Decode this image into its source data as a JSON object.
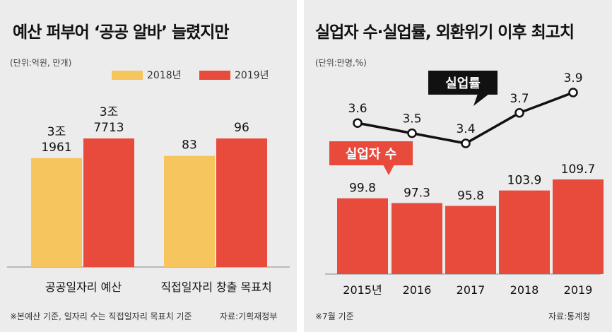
{
  "colors": {
    "series2018": "#f7c55e",
    "series2019": "#e84a3c",
    "line": "#111111",
    "panel_bg": "#ececec"
  },
  "left": {
    "title": "예산 퍼부어 ‘공공 알바’ 늘렸지만",
    "unit": "(단위:억원, 만개)",
    "legend": [
      "2018년",
      "2019년"
    ],
    "footnote": "※본예산 기준, 일자리 수는 직접일자리 목표치 기준",
    "source": "자료:기획재정부"
  },
  "right": {
    "title": "실업자 수·실업률, 외환위기 이후 최고치",
    "unit": "(단위:만명,%)",
    "footnote": "※7월 기준",
    "source": "자료:통계청"
  },
  "chart_data": [
    {
      "type": "bar",
      "categories": [
        "공공일자리 예산",
        "직접일자리 창출 목표치"
      ],
      "series": [
        {
          "name": "2018년",
          "values": [
            31961,
            83
          ],
          "labels": [
            [
              "3조",
              "1961"
            ],
            [
              "83"
            ]
          ]
        },
        {
          "name": "2019년",
          "values": [
            37713,
            96
          ],
          "labels": [
            [
              "3조",
              "7713"
            ],
            [
              "96"
            ]
          ]
        }
      ]
    },
    {
      "type": "bar",
      "categories": [
        "2015년",
        "2016",
        "2017",
        "2018",
        "2019"
      ],
      "series": [
        {
          "name": "실업자 수",
          "type": "bar",
          "values": [
            99.8,
            97.3,
            95.8,
            103.9,
            109.7
          ],
          "labels": [
            "99.8",
            "97.3",
            "95.8",
            "103.9",
            "109.7"
          ]
        },
        {
          "name": "실업률",
          "type": "line",
          "values": [
            3.6,
            3.5,
            3.4,
            3.7,
            3.9
          ],
          "labels": [
            "3.6",
            "3.5",
            "3.4",
            "3.7",
            "3.9"
          ]
        }
      ]
    }
  ]
}
